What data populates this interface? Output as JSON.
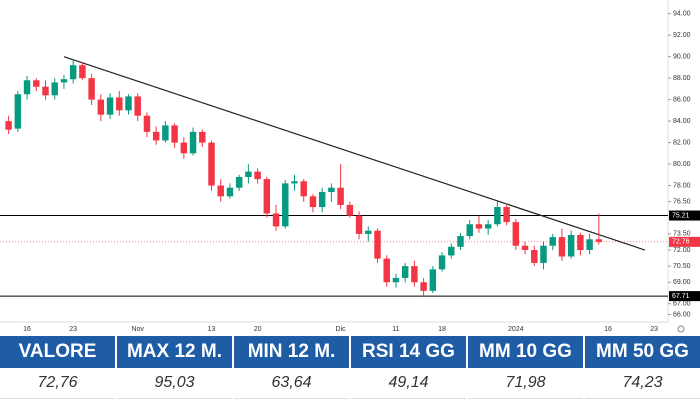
{
  "chart_data": {
    "type": "candlestick",
    "categories": [
      null,
      null,
      "16",
      null,
      null,
      null,
      null,
      "23",
      null,
      null,
      null,
      null,
      null,
      null,
      "Nov",
      null,
      null,
      null,
      null,
      null,
      null,
      null,
      "13",
      null,
      null,
      null,
      null,
      "20",
      null,
      null,
      null,
      null,
      null,
      null,
      null,
      null,
      "Dic",
      null,
      null,
      null,
      null,
      null,
      "11",
      null,
      null,
      null,
      null,
      "18",
      null,
      null,
      null,
      null,
      null,
      null,
      null,
      "2024",
      null,
      null,
      null,
      null,
      null,
      null,
      null,
      null,
      null,
      "16",
      null,
      null,
      null,
      null,
      "23",
      null
    ],
    "open": [
      84,
      83.3,
      86.5,
      87.8,
      87.2,
      86.4,
      87.6,
      87.9,
      89.2,
      88,
      86,
      84.6,
      86.2,
      85,
      86.3,
      84.5,
      83,
      82.2,
      83.6,
      82,
      81,
      83,
      82,
      78,
      77,
      77.8,
      78.8,
      79.3,
      78.6,
      75.4,
      74.2,
      78.2,
      78.4,
      77,
      76,
      77.4,
      77.8,
      76.2,
      75.2,
      73.5,
      73.8,
      71.2,
      69,
      69.4,
      70.5,
      69,
      68.2,
      70.2,
      71.5,
      72.3,
      73.3,
      74.4,
      74,
      74.4,
      76,
      74.6,
      72.4,
      72,
      70.8,
      72.4,
      73.2,
      71.4,
      73.4,
      72,
      73,
      null,
      null,
      null,
      null,
      null,
      null,
      null
    ],
    "high": [
      84.5,
      86.8,
      88.2,
      88,
      87.8,
      88,
      88.3,
      89.8,
      89.5,
      88.4,
      86.5,
      86.6,
      86.8,
      86.5,
      86.6,
      84.8,
      83.5,
      84,
      83.8,
      82.5,
      83.4,
      83.2,
      82.2,
      78.6,
      78.2,
      79,
      80,
      79.6,
      78.8,
      76.2,
      78.5,
      79,
      78.6,
      77.2,
      77.8,
      78.2,
      80,
      76.5,
      75.6,
      74.2,
      74,
      71.5,
      69.8,
      70.8,
      71,
      69.4,
      70.5,
      71.8,
      72.6,
      73.6,
      74.8,
      75.2,
      74.8,
      76.5,
      76.2,
      74.9,
      72.8,
      72.4,
      72.8,
      73.5,
      74,
      73.8,
      73.6,
      73.5,
      75.4,
      null,
      null,
      null,
      null,
      null,
      null,
      null
    ],
    "low": [
      82.8,
      83,
      86,
      86.8,
      86,
      86,
      87,
      87.5,
      87.8,
      85.5,
      84,
      84.2,
      84.5,
      84.6,
      84,
      82.5,
      81.8,
      82,
      81.5,
      80.5,
      80.8,
      81.6,
      77.5,
      76.5,
      76.8,
      77.5,
      78.2,
      78.2,
      75,
      73.8,
      74,
      77.5,
      76.5,
      75.5,
      75.5,
      76.5,
      75.8,
      75,
      73,
      72.8,
      70.8,
      68.6,
      68.5,
      69,
      68.6,
      67.7,
      68,
      70,
      71.2,
      72,
      73,
      73.6,
      73.4,
      74.2,
      74.3,
      72,
      71.6,
      70.5,
      70.2,
      72,
      71,
      71.2,
      71.5,
      71.6,
      72.5,
      null,
      null,
      null,
      null,
      null,
      null,
      null
    ],
    "close": [
      83.2,
      86.5,
      87.8,
      87.2,
      86.4,
      87.6,
      87.9,
      89.2,
      88,
      86,
      84.6,
      86.2,
      85,
      86.3,
      84.5,
      83,
      82.2,
      83.6,
      82,
      81,
      83,
      82,
      78,
      77,
      77.8,
      78.8,
      79.3,
      78.6,
      75.4,
      74.2,
      78.2,
      78.4,
      77,
      76,
      77.4,
      77.8,
      76.2,
      75.2,
      73.5,
      73.8,
      71.2,
      69,
      69.4,
      70.5,
      69,
      68.2,
      70.2,
      71.5,
      72.3,
      73.3,
      74.4,
      74,
      74.4,
      76,
      74.6,
      72.4,
      72,
      70.8,
      72.4,
      73.2,
      71.4,
      73.4,
      72,
      73,
      72.76,
      null,
      null,
      null,
      null,
      null,
      null,
      null
    ],
    "up_color": "#089981",
    "down_color": "#f23645",
    "ylim": [
      65.3,
      94.9
    ],
    "yticks": [
      {
        "value": 94,
        "label": "94.00"
      },
      {
        "value": 92,
        "label": "92.00"
      },
      {
        "value": 90,
        "label": "90.00"
      },
      {
        "value": 88,
        "label": "88.00"
      },
      {
        "value": 86,
        "label": "86.00"
      },
      {
        "value": 84,
        "label": "84.00"
      },
      {
        "value": 82,
        "label": "82.00"
      },
      {
        "value": 80,
        "label": "80.00"
      },
      {
        "value": 78,
        "label": "78.00"
      },
      {
        "value": 76.5,
        "label": "76.50"
      },
      {
        "value": 73.5,
        "label": "73.50"
      },
      {
        "value": 72,
        "label": "72.00"
      },
      {
        "value": 70.5,
        "label": "70.50"
      },
      {
        "value": 69,
        "label": "69.00"
      },
      {
        "value": 67,
        "label": "67.00"
      },
      {
        "value": 66,
        "label": "66.00"
      }
    ],
    "hlines": [
      {
        "value": 75.21,
        "color": "#000000"
      },
      {
        "value": 67.71,
        "color": "#000000"
      }
    ],
    "price_line": {
      "value": 72.76,
      "color": "#f23645"
    },
    "trendline": {
      "x": [
        6,
        69
      ],
      "y": [
        90,
        72
      ],
      "color": "#222222"
    }
  },
  "table": {
    "header": [
      "VALORE",
      "MAX 12 M.",
      "MIN 12 M.",
      "RSI 14 GG",
      "MM 10 GG",
      "MM 50 GG"
    ],
    "row": [
      "72,76",
      "95,03",
      "63,64",
      "49,14",
      "71,98",
      "74,23"
    ]
  }
}
